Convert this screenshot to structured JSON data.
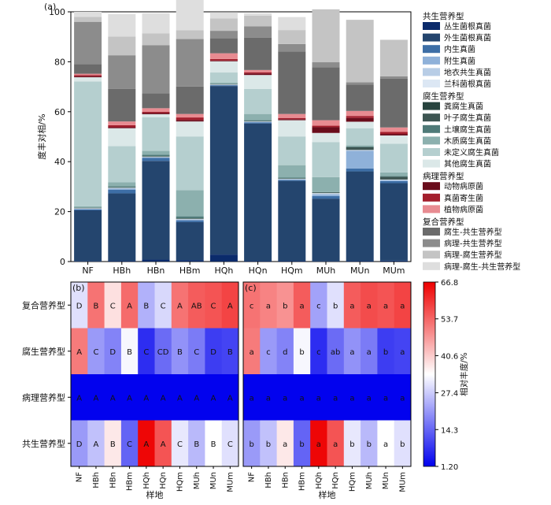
{
  "chart_data": [
    {
      "type": "bar",
      "panel_label": "(a)",
      "ylabel": "度丰对相/%",
      "ylim": [
        0,
        100
      ],
      "yticks": [
        "0",
        "20",
        "40",
        "60",
        "80",
        "100"
      ],
      "categories": [
        "NF",
        "HBh",
        "HBn",
        "HBm",
        "HQh",
        "HQn",
        "HQm",
        "MUh",
        "MUn",
        "MUm"
      ],
      "series": [
        {
          "name": "丛生菌根真菌",
          "color": "#0b2b6b",
          "values": [
            0.2,
            0.3,
            0.8,
            0.6,
            2.8,
            0.3,
            0.3,
            0.2,
            0.3,
            0.4
          ]
        },
        {
          "name": "外生菌根真菌",
          "color": "#24456e",
          "values": [
            20.3,
            27.0,
            39.5,
            15.2,
            67.5,
            55.0,
            32.0,
            25.0,
            35.8,
            31.0
          ]
        },
        {
          "name": "内生真菌",
          "color": "#3d6ea6",
          "values": [
            0.4,
            1.5,
            1.2,
            0.7,
            0.3,
            0.4,
            0.4,
            1.0,
            1.2,
            0.8
          ]
        },
        {
          "name": "附生真菌",
          "color": "#8fb1d9",
          "values": [
            0.2,
            0.4,
            0.2,
            0.3,
            0.1,
            0.2,
            0.2,
            0.6,
            7.0,
            0.3
          ]
        },
        {
          "name": "地衣共生真菌",
          "color": "#b8cde6",
          "values": [
            0.1,
            0.2,
            0.1,
            0.1,
            0.1,
            0.1,
            0.1,
            0.4,
            0.3,
            0.2
          ]
        },
        {
          "name": "兰科菌根真菌",
          "color": "#dce7f4",
          "values": [
            0.1,
            0.1,
            0.1,
            0.1,
            0.1,
            0.1,
            0.1,
            0.2,
            0.1,
            0.1
          ]
        },
        {
          "name": "粪腐生真菌",
          "color": "#27433e",
          "values": [
            0.1,
            0.1,
            0.1,
            0.1,
            0.1,
            0.1,
            0.1,
            0.2,
            0.1,
            0.1
          ]
        },
        {
          "name": "叶子腐生真菌",
          "color": "#3d5552",
          "values": [
            0.1,
            0.1,
            0.2,
            0.2,
            0.1,
            0.1,
            0.1,
            0.1,
            1.0,
            1.0
          ]
        },
        {
          "name": "土壤腐生真菌",
          "color": "#4f7a78",
          "values": [
            0.2,
            0.5,
            0.6,
            0.8,
            0.1,
            0.3,
            0.3,
            0.1,
            0.3,
            0.3
          ]
        },
        {
          "name": "木质腐生真菌",
          "color": "#8cb0ae",
          "values": [
            0.4,
            1.5,
            1.5,
            10.5,
            0.5,
            2.5,
            5.0,
            6.0,
            0.5,
            1.5
          ]
        },
        {
          "name": "未定义腐生真菌",
          "color": "#b5cfcf",
          "values": [
            50.0,
            14.5,
            13.5,
            21.5,
            4.0,
            10.0,
            11.5,
            14.0,
            6.8,
            11.5
          ]
        },
        {
          "name": "其他腐生真菌",
          "color": "#dbe8e8",
          "values": [
            1.7,
            7.2,
            1.2,
            6.0,
            4.5,
            5.6,
            6.5,
            3.7,
            2.6,
            3.3
          ]
        },
        {
          "name": "动物病原菌",
          "color": "#6a0d1c",
          "values": [
            0.4,
            0.4,
            0.5,
            0.6,
            0.3,
            0.6,
            0.4,
            2.3,
            1.5,
            0.6
          ]
        },
        {
          "name": "真菌寄生菌",
          "color": "#a31e2c",
          "values": [
            0.5,
            0.8,
            0.5,
            1.0,
            0.6,
            0.5,
            0.5,
            0.6,
            0.8,
            0.8
          ]
        },
        {
          "name": "植物病原菌",
          "color": "#e88b91",
          "values": [
            0.5,
            1.5,
            1.4,
            1.4,
            2.3,
            0.9,
            1.6,
            2.2,
            2.0,
            1.8
          ]
        },
        {
          "name": "腐生-共生营养型",
          "color": "#6b6b6b",
          "values": [
            3.8,
            13.0,
            6.0,
            11.0,
            6.0,
            13.0,
            25.0,
            21.2,
            10.5,
            19.5
          ]
        },
        {
          "name": "病理-共生营养型",
          "color": "#8c8c8c",
          "values": [
            17.0,
            13.5,
            19.2,
            19.0,
            3.0,
            4.5,
            3.0,
            2.0,
            1.0,
            1.0
          ]
        },
        {
          "name": "病理-腐生营养型",
          "color": "#c4c4c4",
          "values": [
            2.0,
            7.5,
            4.8,
            3.5,
            5.0,
            4.3,
            5.6,
            21.2,
            25.0,
            14.6
          ]
        },
        {
          "name": "病理-腐生-共生营养型",
          "color": "#dedede",
          "values": [
            2.0,
            9.0,
            8.0,
            16.5,
            2.5,
            0.9,
            5.2,
            0.0,
            0.0,
            0.0
          ]
        }
      ],
      "legend_groups": [
        {
          "title": "共生营养型",
          "items": [
            "丛生菌根真菌",
            "外生菌根真菌",
            "内生真菌",
            "附生真菌",
            "地衣共生真菌",
            "兰科菌根真菌"
          ]
        },
        {
          "title": "腐生营养型",
          "items": [
            "粪腐生真菌",
            "叶子腐生真菌",
            "土壤腐生真菌",
            "木质腐生真菌",
            "未定义腐生真菌",
            "其他腐生真菌"
          ]
        },
        {
          "title": "病理营养型",
          "items": [
            "动物病原菌",
            "真菌寄生菌",
            "植物病原菌"
          ]
        },
        {
          "title": "复合营养型",
          "items": [
            "腐生-共生营养型",
            "病理-共生营养型",
            "病理-腐生营养型",
            "病理-腐生-共生营养型"
          ]
        }
      ],
      "legend_placement": "right"
    },
    {
      "type": "heatmap",
      "panel_label": "(b)",
      "rows": [
        "复合营养型",
        "腐生营养型",
        "病理营养型",
        "共生营养型"
      ],
      "columns": [
        "NF",
        "HBh",
        "HBn",
        "HBm",
        "HQh",
        "HQn",
        "HQm",
        "MUh",
        "MUn",
        "MUm"
      ],
      "values": [
        [
          30,
          52,
          38,
          53,
          24,
          29,
          52,
          55,
          56,
          58
        ],
        [
          51,
          21,
          18,
          33,
          7,
          15,
          20,
          17,
          9,
          10
        ],
        [
          1.5,
          1.5,
          1.5,
          1.5,
          1.5,
          1.5,
          1.5,
          1.5,
          1.5,
          1.5
        ],
        [
          21,
          26,
          37,
          14,
          66,
          56,
          31,
          25,
          34,
          30
        ]
      ],
      "labels": [
        [
          "D",
          "B",
          "C",
          "A",
          "B",
          "C",
          "A",
          "AB",
          "C",
          "A"
        ],
        [
          "A",
          "C",
          "D",
          "B",
          "C",
          "CD",
          "B",
          "C",
          "D",
          "B"
        ],
        [
          "A",
          "A",
          "A",
          "A",
          "A",
          "A",
          "A",
          "A",
          "A",
          "A"
        ],
        [
          "D",
          "A",
          "B",
          "C",
          "A",
          "A",
          "C",
          "B",
          "B",
          "C"
        ]
      ],
      "xlabel": "样地"
    },
    {
      "type": "heatmap",
      "panel_label": "(c)",
      "rows": [
        "复合营养型",
        "腐生营养型",
        "病理营养型",
        "共生营养型"
      ],
      "columns": [
        "NF",
        "HBh",
        "HBn",
        "HBm",
        "HQh",
        "HQn",
        "HQm",
        "MUh",
        "MUn",
        "MUm"
      ],
      "values": [
        [
          52,
          50,
          48,
          55,
          22,
          30,
          55,
          57,
          56,
          58
        ],
        [
          51,
          21,
          18,
          33,
          7,
          15,
          20,
          17,
          9,
          10
        ],
        [
          1.5,
          1.5,
          1.5,
          1.5,
          1.5,
          1.5,
          1.5,
          1.5,
          1.5,
          1.5
        ],
        [
          21,
          26,
          37,
          14,
          66,
          56,
          31,
          25,
          34,
          30
        ]
      ],
      "labels": [
        [
          "c",
          "a",
          "b",
          "a",
          "c",
          "b",
          "a",
          "a",
          "a",
          "a"
        ],
        [
          "a",
          "c",
          "d",
          "b",
          "c",
          "ab",
          "a",
          "a",
          "b",
          "a"
        ],
        [
          "a",
          "a",
          "a",
          "a",
          "a",
          "a",
          "a",
          "a",
          "a",
          "a"
        ],
        [
          "b",
          "b",
          "a",
          "b",
          "a",
          "a",
          "b",
          "b",
          "a",
          "b"
        ]
      ],
      "xlabel": "样地"
    },
    {
      "type": "colorbar",
      "label": "相对丰度/%",
      "range": [
        1.2,
        66.8
      ],
      "ticks": [
        "66.8",
        "53.7",
        "40.6",
        "27.4",
        "14.3",
        "1.20"
      ],
      "colors": [
        "#0000ee",
        "#ffffff",
        "#ee0000"
      ]
    }
  ]
}
